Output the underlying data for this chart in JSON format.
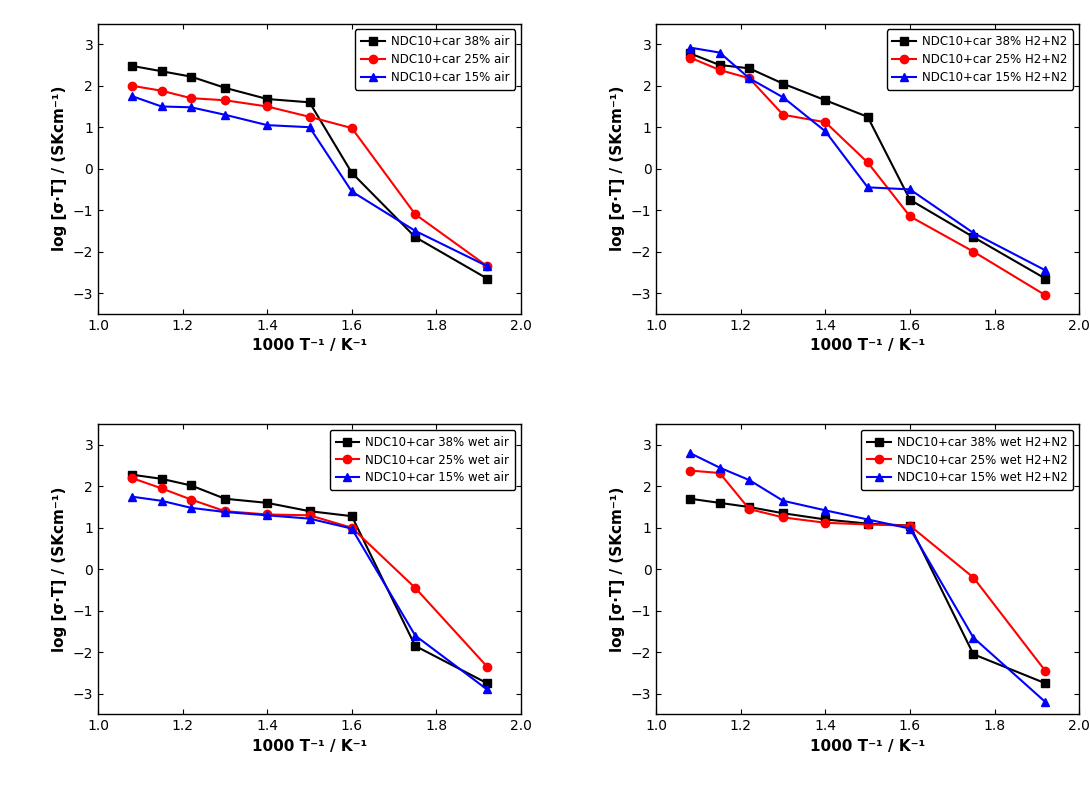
{
  "subplot_configs": [
    {
      "legend_labels": [
        "NDC10+car 38% air",
        "NDC10+car 25% air",
        "NDC10+car 15% air"
      ],
      "colors": [
        "#000000",
        "#ff0000",
        "#0000ff"
      ],
      "markers": [
        "s",
        "o",
        "^"
      ],
      "series": [
        {
          "x": [
            1.08,
            1.15,
            1.22,
            1.3,
            1.4,
            1.5,
            1.6,
            1.75,
            1.92
          ],
          "y": [
            2.48,
            2.35,
            2.22,
            1.95,
            1.68,
            1.6,
            -0.1,
            -1.65,
            -2.65
          ]
        },
        {
          "x": [
            1.08,
            1.15,
            1.22,
            1.3,
            1.4,
            1.5,
            1.6,
            1.75,
            1.92
          ],
          "y": [
            2.0,
            1.88,
            1.7,
            1.65,
            1.5,
            1.25,
            0.98,
            -1.1,
            -2.35
          ]
        },
        {
          "x": [
            1.08,
            1.15,
            1.22,
            1.3,
            1.4,
            1.5,
            1.6,
            1.75,
            1.92
          ],
          "y": [
            1.75,
            1.5,
            1.48,
            1.3,
            1.05,
            1.0,
            -0.55,
            -1.5,
            -2.35
          ]
        }
      ]
    },
    {
      "legend_labels": [
        "NDC10+car 38% H2+N2",
        "NDC10+car 25% H2+N2",
        "NDC10+car 15% H2+N2"
      ],
      "colors": [
        "#000000",
        "#ff0000",
        "#0000ff"
      ],
      "markers": [
        "s",
        "o",
        "^"
      ],
      "series": [
        {
          "x": [
            1.08,
            1.15,
            1.22,
            1.3,
            1.4,
            1.5,
            1.6,
            1.75,
            1.92
          ],
          "y": [
            2.78,
            2.5,
            2.42,
            2.05,
            1.65,
            1.25,
            -0.75,
            -1.65,
            -2.65
          ]
        },
        {
          "x": [
            1.08,
            1.15,
            1.22,
            1.3,
            1.4,
            1.5,
            1.6,
            1.75,
            1.92
          ],
          "y": [
            2.68,
            2.38,
            2.18,
            1.3,
            1.12,
            0.15,
            -1.15,
            -2.0,
            -3.05
          ]
        },
        {
          "x": [
            1.08,
            1.15,
            1.22,
            1.3,
            1.4,
            1.5,
            1.6,
            1.75,
            1.92
          ],
          "y": [
            2.92,
            2.8,
            2.18,
            1.72,
            0.9,
            -0.45,
            -0.5,
            -1.55,
            -2.45
          ]
        }
      ]
    },
    {
      "legend_labels": [
        "NDC10+car 38% wet air",
        "NDC10+car 25% wet air",
        "NDC10+car 15% wet air"
      ],
      "colors": [
        "#000000",
        "#ff0000",
        "#0000ff"
      ],
      "markers": [
        "s",
        "o",
        "^"
      ],
      "series": [
        {
          "x": [
            1.08,
            1.15,
            1.22,
            1.3,
            1.4,
            1.5,
            1.6,
            1.75,
            1.92
          ],
          "y": [
            2.28,
            2.18,
            2.02,
            1.7,
            1.6,
            1.4,
            1.28,
            -1.85,
            -2.75
          ]
        },
        {
          "x": [
            1.08,
            1.15,
            1.22,
            1.3,
            1.4,
            1.5,
            1.6,
            1.75,
            1.92
          ],
          "y": [
            2.2,
            1.95,
            1.68,
            1.4,
            1.32,
            1.3,
            1.0,
            -0.45,
            -2.35
          ]
        },
        {
          "x": [
            1.08,
            1.15,
            1.22,
            1.3,
            1.4,
            1.5,
            1.6,
            1.75,
            1.92
          ],
          "y": [
            1.75,
            1.65,
            1.48,
            1.38,
            1.3,
            1.22,
            0.98,
            -1.6,
            -2.9
          ]
        }
      ]
    },
    {
      "legend_labels": [
        "NDC10+car 38% wet H2+N2",
        "NDC10+car 25% wet H2+N2",
        "NDC10+car 15% wet H2+N2"
      ],
      "colors": [
        "#000000",
        "#ff0000",
        "#0000ff"
      ],
      "markers": [
        "s",
        "o",
        "^"
      ],
      "series": [
        {
          "x": [
            1.08,
            1.15,
            1.22,
            1.3,
            1.4,
            1.5,
            1.6,
            1.75,
            1.92
          ],
          "y": [
            1.7,
            1.6,
            1.5,
            1.35,
            1.2,
            1.1,
            1.05,
            -2.05,
            -2.75
          ]
        },
        {
          "x": [
            1.08,
            1.15,
            1.22,
            1.3,
            1.4,
            1.5,
            1.6,
            1.75,
            1.92
          ],
          "y": [
            2.38,
            2.32,
            1.45,
            1.25,
            1.12,
            1.08,
            1.05,
            -0.2,
            -2.45
          ]
        },
        {
          "x": [
            1.08,
            1.15,
            1.22,
            1.3,
            1.4,
            1.5,
            1.6,
            1.75,
            1.92
          ],
          "y": [
            2.8,
            2.45,
            2.15,
            1.65,
            1.42,
            1.2,
            0.98,
            -1.65,
            -3.2
          ]
        }
      ]
    }
  ],
  "xlabel": "1000 T⁻¹ / K⁻¹",
  "ylabel": "log [σ·T] / (SKcm⁻¹)",
  "xlim": [
    1.0,
    2.0
  ],
  "ylim": [
    -3.5,
    3.5
  ],
  "yticks": [
    -3,
    -2,
    -1,
    0,
    1,
    2,
    3
  ],
  "xticks": [
    1.0,
    1.2,
    1.4,
    1.6,
    1.8,
    2.0
  ],
  "background_color": "#ffffff",
  "marker_size": 6,
  "line_width": 1.5,
  "legend_fontsize": 8.5,
  "axis_label_fontsize": 11,
  "tick_fontsize": 10
}
